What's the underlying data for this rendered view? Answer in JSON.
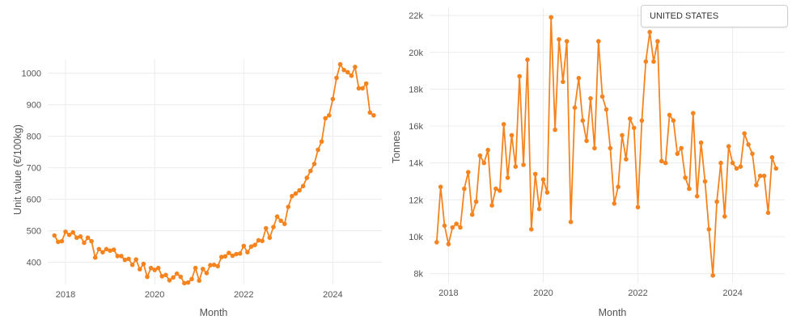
{
  "filter": {
    "country": "UNITED STATES"
  },
  "chart_data": [
    {
      "type": "line",
      "xlabel": "Month",
      "ylabel": "Unit value (€/100kg)",
      "color": "#f5841f",
      "xlim": [
        2017.6,
        2025.1
      ],
      "ylim": [
        330,
        1045
      ],
      "xticks": [
        2018,
        2020,
        2022,
        2024
      ],
      "yticks": [
        400,
        500,
        600,
        700,
        800,
        900,
        1000
      ],
      "grid": true,
      "x_start": 2017.75,
      "x_step": 0.08333,
      "values": [
        485,
        465,
        467,
        497,
        487,
        495,
        478,
        482,
        462,
        478,
        467,
        415,
        442,
        432,
        442,
        437,
        440,
        420,
        420,
        408,
        411,
        392,
        409,
        378,
        395,
        354,
        382,
        376,
        382,
        356,
        360,
        343,
        352,
        364,
        354,
        334,
        336,
        347,
        382,
        342,
        379,
        366,
        391,
        392,
        388,
        417,
        419,
        430,
        421,
        426,
        428,
        452,
        432,
        450,
        455,
        470,
        468,
        508,
        478,
        512,
        545,
        532,
        522,
        576,
        610,
        618,
        628,
        642,
        668,
        690,
        712,
        757,
        783,
        857,
        866,
        918,
        985,
        1028,
        1010,
        1003,
        992,
        1020,
        952,
        952,
        967,
        875,
        866
      ]
    },
    {
      "type": "line",
      "xlabel": "Month",
      "ylabel": "Tonnes",
      "color": "#f5841f",
      "xlim": [
        2017.6,
        2025.1
      ],
      "ylim": [
        7500,
        22400
      ],
      "xticks": [
        2018,
        2020,
        2022,
        2024
      ],
      "ytick_values": [
        8000,
        10000,
        12000,
        14000,
        16000,
        18000,
        20000,
        22000
      ],
      "ytick_labels": [
        "8k",
        "10k",
        "12k",
        "14k",
        "16k",
        "18k",
        "20k",
        "22k"
      ],
      "grid": true,
      "x_start": 2017.75,
      "x_step": 0.08333,
      "values": [
        9700,
        12700,
        10600,
        9600,
        10500,
        10700,
        10500,
        12600,
        13500,
        11200,
        11900,
        14400,
        14000,
        14700,
        11700,
        12600,
        12500,
        16100,
        13200,
        15500,
        13800,
        18700,
        13900,
        19600,
        10400,
        13400,
        11500,
        13100,
        12400,
        21900,
        15800,
        20700,
        18400,
        20600,
        10800,
        17000,
        18600,
        16300,
        15200,
        17500,
        14800,
        20600,
        17600,
        16900,
        14800,
        11800,
        12700,
        15500,
        14200,
        16400,
        15900,
        11600,
        16300,
        19500,
        21100,
        19500,
        20600,
        14100,
        14000,
        16600,
        16300,
        14500,
        14800,
        13200,
        12600,
        16700,
        12200,
        15100,
        13000,
        10400,
        7900,
        11900,
        14000,
        11100,
        14900,
        14000,
        13700,
        13800,
        15600,
        15000,
        14500,
        12800,
        13300,
        13300,
        11300,
        14300,
        13700
      ]
    }
  ]
}
